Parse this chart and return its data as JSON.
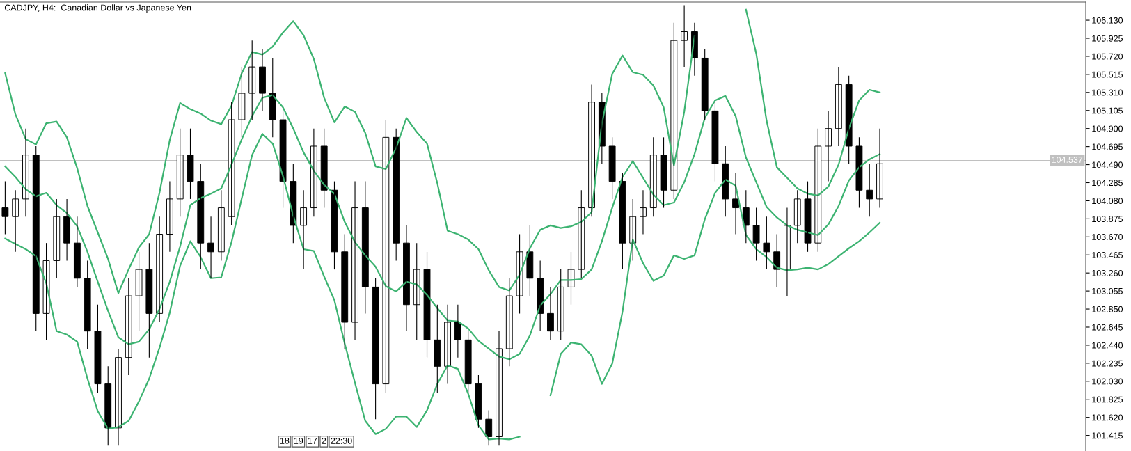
{
  "chart_data": {
    "type": "candlestick",
    "title": "CADJPY, H4:  Canadian Dollar vs Japanese Yen",
    "categories": [
      null,
      null,
      null,
      null,
      null,
      null,
      null,
      null,
      null,
      null,
      null,
      null,
      null,
      null,
      null,
      null,
      null,
      null,
      null,
      null,
      null,
      null,
      null,
      null,
      null,
      null,
      null,
      null,
      null,
      null,
      null,
      null,
      null,
      null,
      null,
      null,
      null,
      null,
      null,
      null,
      null,
      null,
      null,
      null,
      null,
      null,
      null,
      null,
      null,
      null,
      null,
      null,
      null,
      null,
      null,
      null,
      null,
      null,
      null,
      null,
      null,
      null,
      null,
      null,
      null,
      null,
      null,
      null,
      null,
      null,
      null,
      null,
      null,
      null,
      null,
      null,
      null,
      null,
      null,
      null,
      null,
      null,
      null,
      null,
      null,
      null
    ],
    "ohlc": [
      [
        104.0,
        104.3,
        103.7,
        103.9
      ],
      [
        103.9,
        104.2,
        103.5,
        104.1
      ],
      [
        104.1,
        104.9,
        103.9,
        104.6
      ],
      [
        104.6,
        104.7,
        102.6,
        102.8
      ],
      [
        102.8,
        103.6,
        102.5,
        103.4
      ],
      [
        103.4,
        104.1,
        103.2,
        103.9
      ],
      [
        103.9,
        104.1,
        103.4,
        103.6
      ],
      [
        103.6,
        103.9,
        103.1,
        103.2
      ],
      [
        103.2,
        103.4,
        102.4,
        102.6
      ],
      [
        102.6,
        102.9,
        101.9,
        102.0
      ],
      [
        102.0,
        102.2,
        101.3,
        101.5
      ],
      [
        101.5,
        102.4,
        101.3,
        102.3
      ],
      [
        102.3,
        103.2,
        102.1,
        103.0
      ],
      [
        103.0,
        103.5,
        102.6,
        103.3
      ],
      [
        103.3,
        103.6,
        102.3,
        102.8
      ],
      [
        102.8,
        103.9,
        102.7,
        103.7
      ],
      [
        103.7,
        104.3,
        103.5,
        104.1
      ],
      [
        104.1,
        104.9,
        103.9,
        104.6
      ],
      [
        104.6,
        104.9,
        104.1,
        104.3
      ],
      [
        104.3,
        104.5,
        103.3,
        103.6
      ],
      [
        103.6,
        103.9,
        103.2,
        103.5
      ],
      [
        103.5,
        104.2,
        103.4,
        104.0
      ],
      [
        103.9,
        105.2,
        103.8,
        105.0
      ],
      [
        105.0,
        105.6,
        104.8,
        105.3
      ],
      [
        105.3,
        105.9,
        105.0,
        105.6
      ],
      [
        105.6,
        105.8,
        105.1,
        105.3
      ],
      [
        105.3,
        105.7,
        104.8,
        105.0
      ],
      [
        105.0,
        105.1,
        104.0,
        104.3
      ],
      [
        104.3,
        104.5,
        103.6,
        103.8
      ],
      [
        103.8,
        104.2,
        103.3,
        104.0
      ],
      [
        104.0,
        104.9,
        103.9,
        104.7
      ],
      [
        104.7,
        104.9,
        104.0,
        104.2
      ],
      [
        104.2,
        104.3,
        103.3,
        103.5
      ],
      [
        103.5,
        103.7,
        102.4,
        102.7
      ],
      [
        102.7,
        104.3,
        102.5,
        104.0
      ],
      [
        104.0,
        104.3,
        102.8,
        103.1
      ],
      [
        103.1,
        103.2,
        101.6,
        102.0
      ],
      [
        102.0,
        105.0,
        101.9,
        104.8
      ],
      [
        104.8,
        104.9,
        103.4,
        103.6
      ],
      [
        103.6,
        103.8,
        102.6,
        102.9
      ],
      [
        102.9,
        103.6,
        102.5,
        103.3
      ],
      [
        103.3,
        103.5,
        102.3,
        102.5
      ],
      [
        102.5,
        102.9,
        101.9,
        102.2
      ],
      [
        102.2,
        102.9,
        102.0,
        102.7
      ],
      [
        102.7,
        102.9,
        102.3,
        102.5
      ],
      [
        102.5,
        102.6,
        101.9,
        102.0
      ],
      [
        102.0,
        102.1,
        101.5,
        101.6
      ],
      [
        101.6,
        101.7,
        101.3,
        101.4
      ],
      [
        101.4,
        102.6,
        101.3,
        102.4
      ],
      [
        102.4,
        103.2,
        102.2,
        103.0
      ],
      [
        103.0,
        103.7,
        102.8,
        103.5
      ],
      [
        103.5,
        103.8,
        103.0,
        103.2
      ],
      [
        103.2,
        103.4,
        102.6,
        102.8
      ],
      [
        102.8,
        103.1,
        102.5,
        102.6
      ],
      [
        102.6,
        103.3,
        102.5,
        103.1
      ],
      [
        103.1,
        103.5,
        102.9,
        103.3
      ],
      [
        103.3,
        104.2,
        103.2,
        104.0
      ],
      [
        104.0,
        105.4,
        103.9,
        105.2
      ],
      [
        105.2,
        105.3,
        104.5,
        104.7
      ],
      [
        104.7,
        104.8,
        104.1,
        104.3
      ],
      [
        104.3,
        104.4,
        103.3,
        103.6
      ],
      [
        103.6,
        104.1,
        103.4,
        103.9
      ],
      [
        103.9,
        104.2,
        103.7,
        104.0
      ],
      [
        104.0,
        104.8,
        103.9,
        104.6
      ],
      [
        104.6,
        104.8,
        104.0,
        104.2
      ],
      [
        104.2,
        106.1,
        104.1,
        105.9
      ],
      [
        105.9,
        106.3,
        105.6,
        106.0
      ],
      [
        106.0,
        106.1,
        105.5,
        105.7
      ],
      [
        105.7,
        105.8,
        105.0,
        105.1
      ],
      [
        105.1,
        105.2,
        104.3,
        104.5
      ],
      [
        104.5,
        104.7,
        103.9,
        104.1
      ],
      [
        104.1,
        104.4,
        103.7,
        104.0
      ],
      [
        104.0,
        104.2,
        103.6,
        103.8
      ],
      [
        103.8,
        104.0,
        103.4,
        103.6
      ],
      [
        103.6,
        103.9,
        103.3,
        103.5
      ],
      [
        103.5,
        103.7,
        103.1,
        103.3
      ],
      [
        103.3,
        104.0,
        103.0,
        103.8
      ],
      [
        103.8,
        104.2,
        103.6,
        104.1
      ],
      [
        104.1,
        104.3,
        103.5,
        103.6
      ],
      [
        103.6,
        104.9,
        103.5,
        104.7
      ],
      [
        104.7,
        105.1,
        104.3,
        104.9
      ],
      [
        104.9,
        105.6,
        104.7,
        105.4
      ],
      [
        105.4,
        105.5,
        104.5,
        104.7
      ],
      [
        104.7,
        104.8,
        104.0,
        104.2
      ],
      [
        104.2,
        104.5,
        103.9,
        104.1
      ],
      [
        104.1,
        104.9,
        104.0,
        104.5
      ]
    ],
    "series": [
      {
        "type": "line",
        "color": "#3cb371",
        "values": [
          105.53,
          105.06,
          104.78,
          104.72,
          104.96,
          104.98,
          104.8,
          104.45,
          104.02,
          103.72,
          103.42,
          103.03,
          103.3,
          103.55,
          103.7,
          104.17,
          104.77,
          105.19,
          105.12,
          105.07,
          104.99,
          104.95,
          105.16,
          105.53,
          105.77,
          105.74,
          105.83,
          105.99,
          106.12,
          105.96,
          105.69,
          105.25,
          104.97,
          105.15,
          105.09,
          104.85,
          104.47,
          104.44,
          104.68,
          105.02,
          104.86,
          104.73,
          104.28,
          103.74,
          103.7,
          103.64,
          103.53,
          103.29,
          103.1,
          103.06,
          103.24,
          103.54,
          103.75,
          103.8,
          103.77,
          103.79,
          103.84,
          103.95,
          104.96,
          105.52,
          105.73,
          105.54,
          105.51,
          105.39,
          105.14,
          104.48,
          105.09,
          105.95,
          null,
          null,
          null,
          null,
          106.25,
          105.75,
          104.99,
          104.46,
          104.34,
          104.22,
          104.16,
          104.14,
          104.24,
          104.49,
          104.9,
          105.22,
          105.34,
          105.31
        ]
      },
      {
        "type": "line",
        "color": "#3cb371",
        "values": [
          104.47,
          104.35,
          104.21,
          104.13,
          104.17,
          104.03,
          103.94,
          103.79,
          103.5,
          103.16,
          102.83,
          102.53,
          102.45,
          102.48,
          102.62,
          102.85,
          103.16,
          103.56,
          104.03,
          104.11,
          104.16,
          104.22,
          104.49,
          104.78,
          105.04,
          105.25,
          105.28,
          105.14,
          104.9,
          104.63,
          104.42,
          104.26,
          104.16,
          103.84,
          103.61,
          103.46,
          103.33,
          103.11,
          103.05,
          103.16,
          103.13,
          103.01,
          102.86,
          102.72,
          102.71,
          102.63,
          102.49,
          102.4,
          102.31,
          102.28,
          102.34,
          102.55,
          102.89,
          103.02,
          103.18,
          103.18,
          103.19,
          103.3,
          103.62,
          104.0,
          104.35,
          104.53,
          104.34,
          104.15,
          104.03,
          104.06,
          104.29,
          104.61,
          105.02,
          105.22,
          105.27,
          105.04,
          104.57,
          104.29,
          104.01,
          103.89,
          103.8,
          103.75,
          103.72,
          103.69,
          103.81,
          104.02,
          104.31,
          104.46,
          104.55,
          104.61
        ]
      },
      {
        "type": "line",
        "color": "#3cb371",
        "values": [
          103.65,
          103.59,
          103.53,
          103.45,
          103.14,
          102.6,
          102.56,
          102.48,
          102.06,
          101.69,
          101.49,
          101.51,
          101.58,
          101.8,
          102.06,
          102.41,
          102.81,
          103.34,
          103.62,
          103.44,
          103.2,
          103.21,
          103.61,
          104.11,
          104.6,
          104.84,
          104.73,
          104.36,
          103.91,
          103.53,
          103.51,
          103.22,
          102.95,
          102.46,
          102.01,
          101.58,
          101.43,
          101.49,
          101.63,
          101.63,
          101.51,
          101.7,
          102.0,
          102.21,
          102.17,
          101.89,
          101.53,
          101.37,
          101.38,
          101.37,
          101.4,
          null,
          null,
          101.87,
          102.34,
          102.47,
          102.45,
          102.32,
          102.0,
          102.23,
          102.82,
          103.64,
          103.37,
          103.17,
          103.23,
          103.46,
          103.42,
          103.46,
          103.87,
          104.17,
          104.32,
          104.25,
          103.69,
          103.53,
          103.44,
          103.32,
          103.29,
          103.3,
          103.32,
          103.3,
          103.36,
          103.45,
          103.54,
          103.62,
          103.72,
          103.83
        ]
      }
    ],
    "ylim": [
      101.238,
      106.336
    ],
    "yticks": [
      {
        "value": 106.13,
        "label": "106.130"
      },
      {
        "value": 105.925,
        "label": "105.925"
      },
      {
        "value": 105.72,
        "label": "105.720"
      },
      {
        "value": 105.515,
        "label": "105.515"
      },
      {
        "value": 105.31,
        "label": "105.310"
      },
      {
        "value": 105.105,
        "label": "105.105"
      },
      {
        "value": 104.9,
        "label": "104.900"
      },
      {
        "value": 104.695,
        "label": "104.695"
      },
      {
        "value": 104.49,
        "label": "104.490"
      },
      {
        "value": 104.285,
        "label": "104.285"
      },
      {
        "value": 104.08,
        "label": "104.080"
      },
      {
        "value": 103.875,
        "label": "103.875"
      },
      {
        "value": 103.67,
        "label": "103.670"
      },
      {
        "value": 103.465,
        "label": "103.465"
      },
      {
        "value": 103.26,
        "label": "103.260"
      },
      {
        "value": 103.055,
        "label": "103.055"
      },
      {
        "value": 102.85,
        "label": "102.850"
      },
      {
        "value": 102.645,
        "label": "102.645"
      },
      {
        "value": 102.44,
        "label": "102.440"
      },
      {
        "value": 102.235,
        "label": "102.235"
      },
      {
        "value": 102.03,
        "label": "102.030"
      },
      {
        "value": 101.825,
        "label": "101.825"
      },
      {
        "value": 101.62,
        "label": "101.620"
      },
      {
        "value": 101.415,
        "label": "101.415"
      }
    ],
    "ref_lines": [
      {
        "axis": "y",
        "value": 104.537,
        "label": "104.537",
        "color": "#c0c0c0"
      }
    ],
    "annotations": [
      "18",
      "19",
      "17",
      "2",
      "22:30"
    ],
    "tick_labels": "y",
    "grid": false,
    "legend": false
  }
}
